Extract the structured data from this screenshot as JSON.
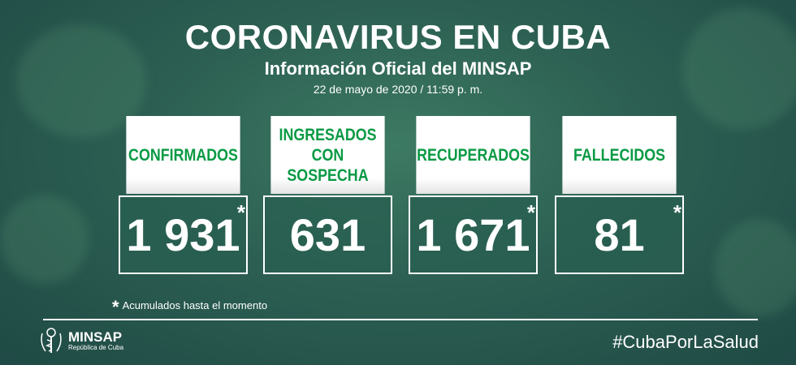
{
  "header": {
    "title": "CORONAVIRUS EN CUBA",
    "subtitle": "Información Oficial del MINSAP",
    "date": "22 de mayo de 2020 / 11:59 p. m."
  },
  "cards": [
    {
      "label": "CONFIRMADOS",
      "value": "1 931",
      "asterisk": "*"
    },
    {
      "label": "INGRESADOS CON SOSPECHA",
      "value": "631",
      "asterisk": ""
    },
    {
      "label": "RECUPERADOS",
      "value": "1 671",
      "asterisk": "*"
    },
    {
      "label": "FALLECIDOS",
      "value": "81",
      "asterisk": "*"
    }
  ],
  "footnote": {
    "symbol": "*",
    "text": "Acumulados hasta el momento"
  },
  "footer": {
    "logo_name": "MINSAP",
    "logo_sub": "República de Cuba",
    "hashtag": "#CubaPorLaSalud"
  },
  "colors": {
    "label_green": "#0a9a44",
    "background": "#2c5f52"
  }
}
